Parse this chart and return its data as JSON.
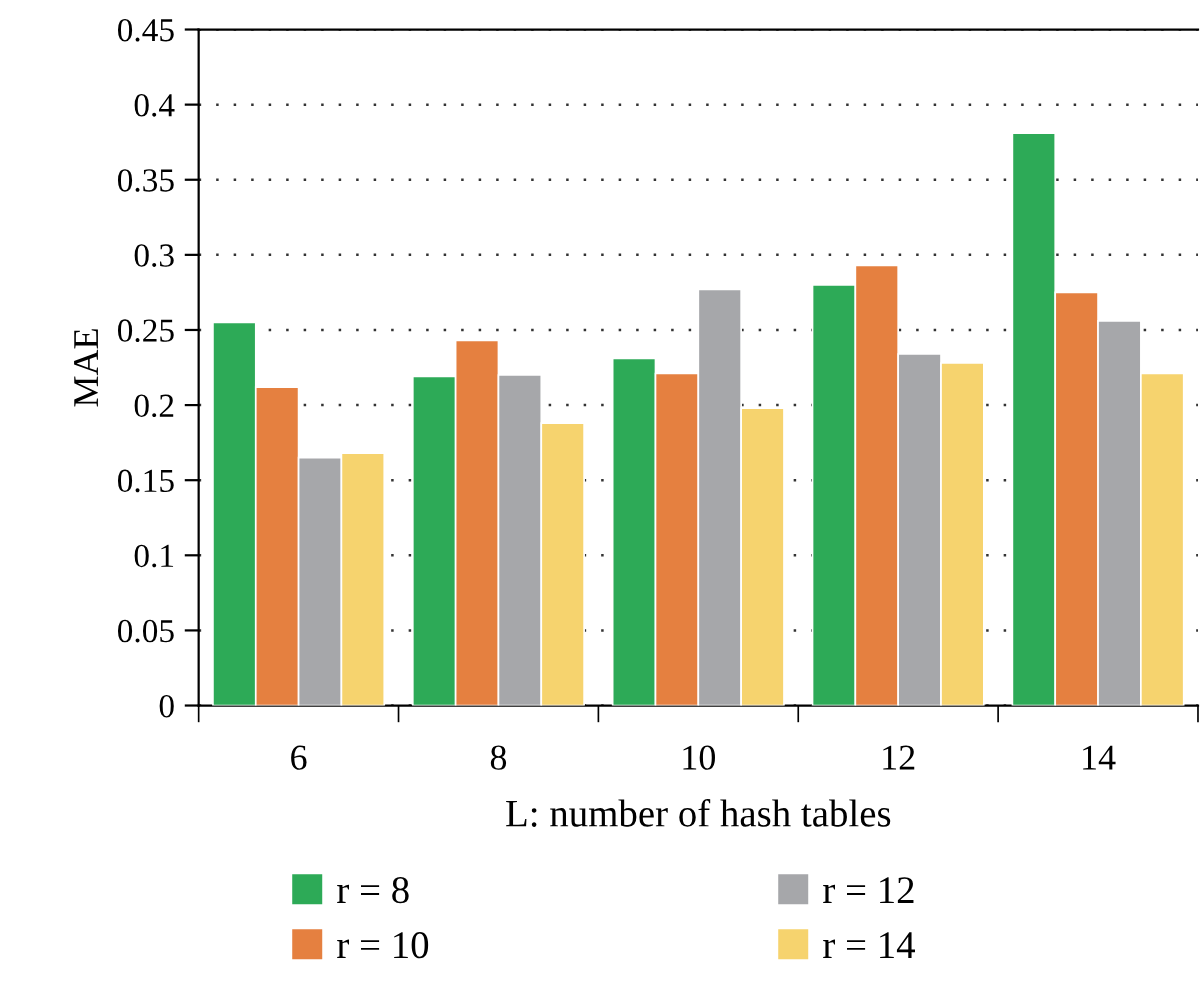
{
  "chart_data": {
    "type": "bar",
    "xlabel": "L: number of hash tables",
    "ylabel": "MAE",
    "categories": [
      "6",
      "8",
      "10",
      "12",
      "14"
    ],
    "series": [
      {
        "name": "r = 8",
        "color": "#2daa57",
        "values": [
          0.255,
          0.219,
          0.231,
          0.28,
          0.381
        ]
      },
      {
        "name": "r = 10",
        "color": "#e58040",
        "values": [
          0.212,
          0.243,
          0.221,
          0.293,
          0.275
        ]
      },
      {
        "name": "r = 12",
        "color": "#a6a7aa",
        "values": [
          0.165,
          0.22,
          0.277,
          0.234,
          0.256
        ]
      },
      {
        "name": "r = 14",
        "color": "#f6d36e",
        "values": [
          0.168,
          0.188,
          0.198,
          0.228,
          0.221
        ]
      }
    ],
    "ylim": [
      0,
      0.45
    ],
    "yticks": [
      0,
      0.05,
      0.1,
      0.15,
      0.2,
      0.25,
      0.3,
      0.35,
      0.4,
      0.45
    ],
    "grid": "y",
    "line_style": "dotted",
    "legend": "bottom"
  }
}
